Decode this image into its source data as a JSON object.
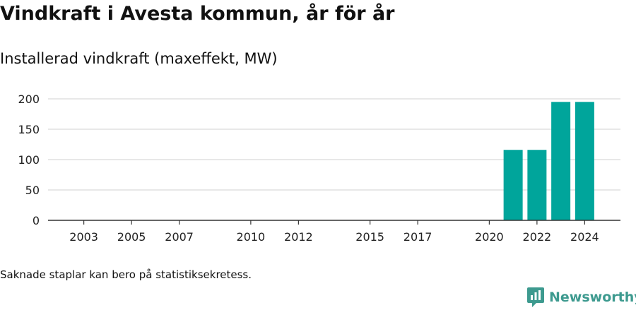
{
  "header": {
    "title": "Vindkraft i Avesta kommun, år för år",
    "subtitle": "Installerad vindkraft (maxeffekt, MW)"
  },
  "footer": {
    "note": "Saknade staplar kan bero på statistiksekretess.",
    "brand": "Newsworthy"
  },
  "colors": {
    "bar": "#00a59b",
    "brand": "#3d9a8f",
    "grid": "#d9d9d9",
    "axis": "#333333"
  },
  "chart_data": {
    "type": "bar",
    "x": [
      2021,
      2022,
      2023,
      2024
    ],
    "values": [
      116,
      116,
      195,
      195
    ],
    "xlim": [
      2001.5,
      2025.5
    ],
    "ylim": [
      0,
      200
    ],
    "yticks": [
      0,
      50,
      100,
      150,
      200
    ],
    "xticks": [
      2003,
      2005,
      2007,
      2010,
      2012,
      2015,
      2017,
      2020,
      2022,
      2024
    ],
    "grid": true
  }
}
